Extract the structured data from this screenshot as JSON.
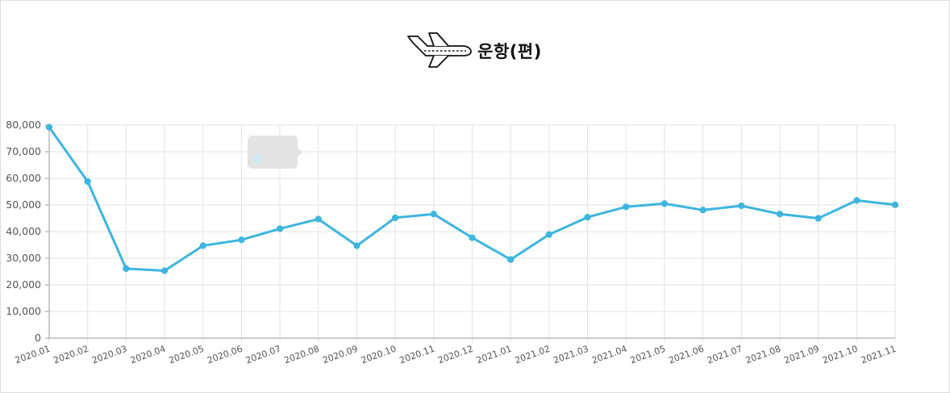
{
  "title": "운항(편)",
  "title_icon": "airplane-icon",
  "colors": {
    "line": "#3db5de",
    "grid": "#e3e3e3",
    "axis": "#999999"
  },
  "chart_data": {
    "type": "line",
    "title": "운항(편)",
    "x": [
      "2020.01",
      "2020.02",
      "2020.03",
      "2020.04",
      "2020.05",
      "2020.06",
      "2020.07",
      "2020.08",
      "2020.09",
      "2020.10",
      "2020.11",
      "2020.12",
      "2021.01",
      "2021.02",
      "2021.03",
      "2021.04",
      "2021.05",
      "2021.06",
      "2021.07",
      "2021.08",
      "2021.09",
      "2021.10",
      "2021.11"
    ],
    "series": [
      {
        "values": [
          79200,
          58800,
          26100,
          25300,
          34700,
          36900,
          41100,
          44700,
          34700,
          45200,
          46600,
          37700,
          29500,
          38900,
          45400,
          49300,
          50500,
          48100,
          49700,
          46600,
          45000,
          51700,
          50100
        ]
      }
    ],
    "yticks": [
      "80,000",
      "70,000",
      "60,000",
      "50,000",
      "40,000",
      "30,000",
      "20,000",
      "10,000",
      "0"
    ],
    "ylim": [
      0,
      80000
    ],
    "grid": true,
    "legend": "none"
  }
}
